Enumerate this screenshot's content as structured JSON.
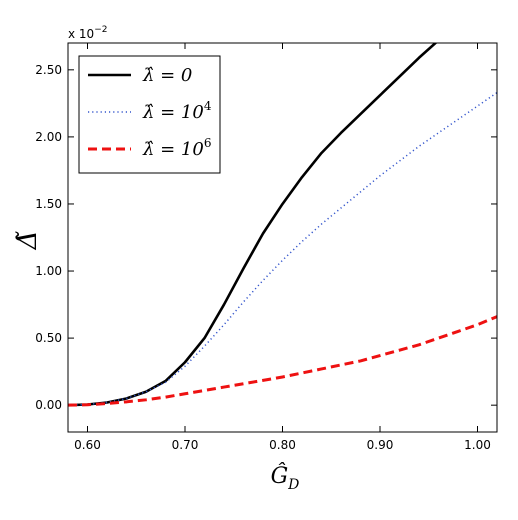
{
  "chart_data": {
    "type": "line",
    "xlabel": "Ĝ",
    "xlabel_subscript": "D",
    "ylabel": "Δ̃",
    "scale_label": "x 10",
    "scale_exponent": "−2",
    "xlim": [
      0.58,
      1.02
    ],
    "ylim": [
      -0.2,
      2.7
    ],
    "xticks": [
      0.6,
      0.7,
      0.8,
      0.9,
      1.0
    ],
    "xtick_labels": [
      "0.60",
      "0.70",
      "0.80",
      "0.90",
      "1.00"
    ],
    "yticks": [
      0.0,
      0.5,
      1.0,
      1.5,
      2.0,
      2.5
    ],
    "ytick_labels": [
      "0.00",
      "0.50",
      "1.00",
      "1.50",
      "2.00",
      "2.50"
    ],
    "grid": false,
    "legend_position": "top-left",
    "series": [
      {
        "name": "λ̂ = 0",
        "label_main": "λ̂ = 0",
        "label_sup": "",
        "color": "#000000",
        "style": "solid",
        "x": [
          0.58,
          0.6,
          0.62,
          0.64,
          0.66,
          0.68,
          0.7,
          0.72,
          0.74,
          0.76,
          0.78,
          0.8,
          0.82,
          0.84,
          0.86,
          0.88,
          0.9,
          0.92,
          0.94,
          0.96,
          0.978
        ],
        "y": [
          0.0,
          0.005,
          0.02,
          0.05,
          0.1,
          0.18,
          0.32,
          0.5,
          0.75,
          1.02,
          1.28,
          1.5,
          1.7,
          1.88,
          2.03,
          2.17,
          2.31,
          2.45,
          2.59,
          2.72,
          2.84
        ]
      },
      {
        "name": "λ̂ = 10^4",
        "label_main": "λ̂ = 10",
        "label_sup": "4",
        "color": "#3355cc",
        "style": "dotted",
        "x": [
          0.58,
          0.6,
          0.62,
          0.64,
          0.66,
          0.68,
          0.7,
          0.72,
          0.74,
          0.76,
          0.78,
          0.8,
          0.82,
          0.84,
          0.86,
          0.88,
          0.9,
          0.92,
          0.94,
          0.96,
          0.98,
          1.0,
          1.02
        ],
        "y": [
          0.0,
          0.005,
          0.02,
          0.05,
          0.1,
          0.17,
          0.29,
          0.44,
          0.6,
          0.77,
          0.93,
          1.08,
          1.22,
          1.35,
          1.47,
          1.59,
          1.71,
          1.82,
          1.93,
          2.03,
          2.13,
          2.23,
          2.33
        ]
      },
      {
        "name": "λ̂ = 10^6",
        "label_main": "λ̂ = 10",
        "label_sup": "6",
        "color": "#ee1111",
        "style": "dashed",
        "x": [
          0.58,
          0.6,
          0.62,
          0.64,
          0.66,
          0.68,
          0.7,
          0.72,
          0.74,
          0.76,
          0.78,
          0.8,
          0.82,
          0.84,
          0.86,
          0.88,
          0.9,
          0.92,
          0.94,
          0.96,
          0.98,
          1.0,
          1.02
        ],
        "y": [
          0.0,
          0.003,
          0.012,
          0.025,
          0.04,
          0.06,
          0.085,
          0.11,
          0.135,
          0.16,
          0.185,
          0.21,
          0.24,
          0.27,
          0.3,
          0.33,
          0.37,
          0.41,
          0.45,
          0.5,
          0.55,
          0.6,
          0.66
        ]
      }
    ]
  }
}
